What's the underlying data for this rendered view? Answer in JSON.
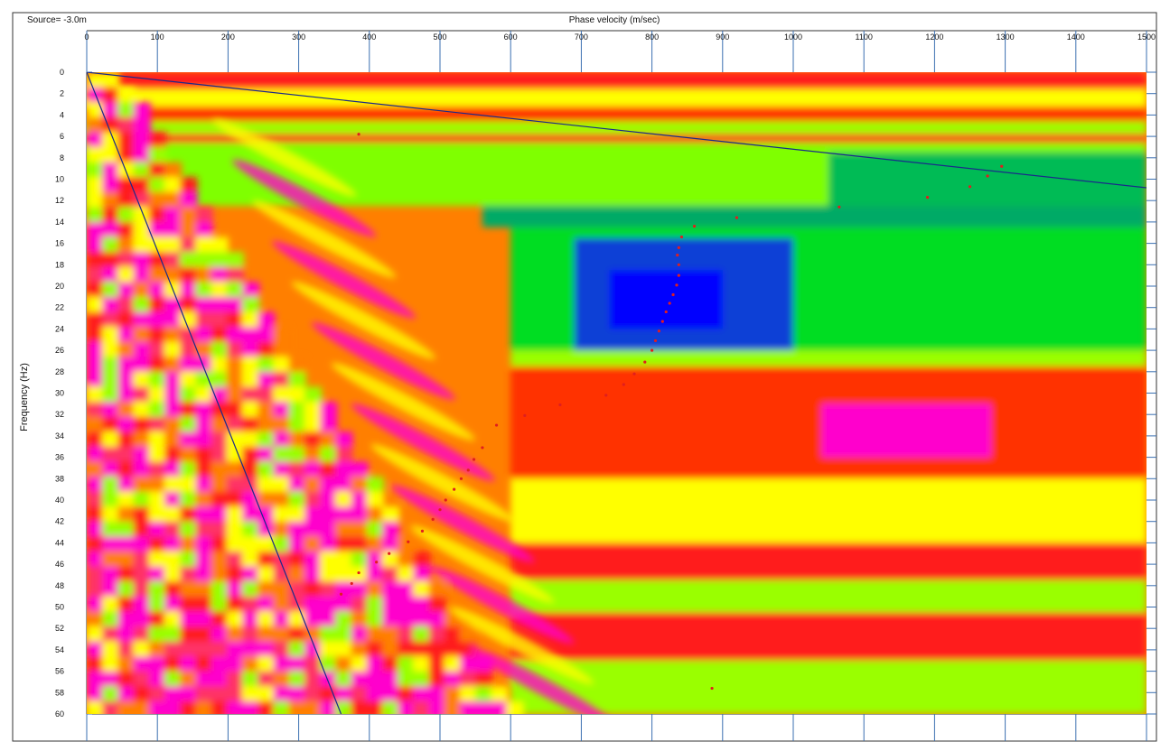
{
  "source_label": "Source= -3.0m",
  "chart_data": {
    "type": "heatmap",
    "title": "",
    "xlabel": "Phase velocity (m/sec)",
    "ylabel": "Frequency (Hz)",
    "xlim": [
      0,
      1500
    ],
    "ylim": [
      0,
      60
    ],
    "y_inverted": true,
    "x_ticks": [
      0,
      100,
      200,
      300,
      400,
      500,
      600,
      700,
      800,
      900,
      1000,
      1100,
      1200,
      1300,
      1400,
      1500
    ],
    "y_ticks": [
      0,
      2,
      4,
      6,
      8,
      10,
      12,
      14,
      16,
      18,
      20,
      22,
      24,
      26,
      28,
      30,
      32,
      34,
      36,
      38,
      40,
      42,
      44,
      46,
      48,
      50,
      52,
      54,
      56,
      58,
      60
    ],
    "grid": true,
    "colormap": [
      "#ff00cc",
      "#ff1a1a",
      "#ff7f00",
      "#ffff00",
      "#9aff00",
      "#00dd00",
      "#00aa55",
      "#0a3fd6",
      "#0000ff"
    ],
    "colormap_meaning": "magenta/red = low energy, yellow/green = medium, blue = high energy",
    "dispersion_picks": {
      "name": "",
      "color": "#e01e1e",
      "points": [
        [
          385,
          5.8
        ],
        [
          670,
          31.1
        ],
        [
          735,
          30.2
        ],
        [
          760,
          29.2
        ],
        [
          775,
          28.2
        ],
        [
          790,
          27.1
        ],
        [
          800,
          26.0
        ],
        [
          805,
          25.1
        ],
        [
          810,
          24.2
        ],
        [
          815,
          23.3
        ],
        [
          820,
          22.4
        ],
        [
          825,
          21.6
        ],
        [
          830,
          20.8
        ],
        [
          835,
          19.9
        ],
        [
          838,
          19.0
        ],
        [
          838,
          18.0
        ],
        [
          836,
          17.1
        ],
        [
          838,
          16.4
        ],
        [
          842,
          15.4
        ],
        [
          860,
          14.4
        ],
        [
          920,
          13.6
        ],
        [
          1065,
          12.6
        ],
        [
          1190,
          11.7
        ],
        [
          1250,
          10.7
        ],
        [
          1275,
          9.7
        ],
        [
          1295,
          8.8
        ],
        [
          620,
          32.1
        ],
        [
          580,
          33.0
        ],
        [
          560,
          35.1
        ],
        [
          548,
          36.2
        ],
        [
          540,
          37.2
        ],
        [
          530,
          38.0
        ],
        [
          520,
          39.0
        ],
        [
          508,
          40.0
        ],
        [
          500,
          40.9
        ],
        [
          490,
          41.8
        ],
        [
          475,
          42.9
        ],
        [
          455,
          43.9
        ],
        [
          428,
          45.0
        ],
        [
          410,
          45.8
        ],
        [
          385,
          46.8
        ],
        [
          375,
          47.8
        ],
        [
          360,
          48.8
        ],
        [
          885,
          57.6
        ]
      ]
    },
    "limit_lines": [
      {
        "from": [
          0,
          0
        ],
        "to": [
          1500,
          10.8
        ]
      },
      {
        "from": [
          0,
          0
        ],
        "to": [
          360,
          60
        ]
      }
    ],
    "energy_regions": [
      {
        "x": [
          0,
          1500
        ],
        "y": [
          0,
          1.6
        ],
        "color": "#ff1a1a"
      },
      {
        "x": [
          0,
          1500
        ],
        "y": [
          1.6,
          3.2
        ],
        "color": "#ffff00"
      },
      {
        "x": [
          0,
          1500
        ],
        "y": [
          3.2,
          4.6
        ],
        "color": "#ff3300"
      },
      {
        "x": [
          0,
          1500
        ],
        "y": [
          4.6,
          5.8
        ],
        "color": "#9aff00"
      },
      {
        "x": [
          0,
          1500
        ],
        "y": [
          5.8,
          6.6
        ],
        "color": "#ff1a1a"
      },
      {
        "x": [
          0,
          1500
        ],
        "y": [
          6.6,
          12.5
        ],
        "color": "#7fff00"
      },
      {
        "x": [
          1050,
          1500
        ],
        "y": [
          7.5,
          12.5
        ],
        "color": "#00bb55"
      },
      {
        "x": [
          560,
          1500
        ],
        "y": [
          12.5,
          14.5
        ],
        "color": "#00aa66"
      },
      {
        "x": [
          600,
          1500
        ],
        "y": [
          14.5,
          26.0
        ],
        "color": "#00dd22"
      },
      {
        "x": [
          690,
          1000
        ],
        "y": [
          15.5,
          26.0
        ],
        "color": "#0a3fd6"
      },
      {
        "x": [
          740,
          900
        ],
        "y": [
          18.5,
          24.0
        ],
        "color": "#0000ff"
      },
      {
        "x": [
          600,
          1500
        ],
        "y": [
          26.0,
          27.5
        ],
        "color": "#9aff00"
      },
      {
        "x": [
          600,
          1500
        ],
        "y": [
          27.5,
          38.0
        ],
        "color": "#ff3300"
      },
      {
        "x": [
          1040,
          1280
        ],
        "y": [
          31.0,
          36.0
        ],
        "color": "#ff00cc"
      },
      {
        "x": [
          600,
          1500
        ],
        "y": [
          38.0,
          44.0
        ],
        "color": "#ffff00"
      },
      {
        "x": [
          600,
          1500
        ],
        "y": [
          44.0,
          47.5
        ],
        "color": "#ff1a1a"
      },
      {
        "x": [
          600,
          1500
        ],
        "y": [
          47.5,
          50.5
        ],
        "color": "#9aff00"
      },
      {
        "x": [
          600,
          1500
        ],
        "y": [
          50.5,
          55.0
        ],
        "color": "#ff1a1a"
      },
      {
        "x": [
          600,
          1500
        ],
        "y": [
          55.0,
          60.0
        ],
        "color": "#9aff00"
      }
    ]
  }
}
